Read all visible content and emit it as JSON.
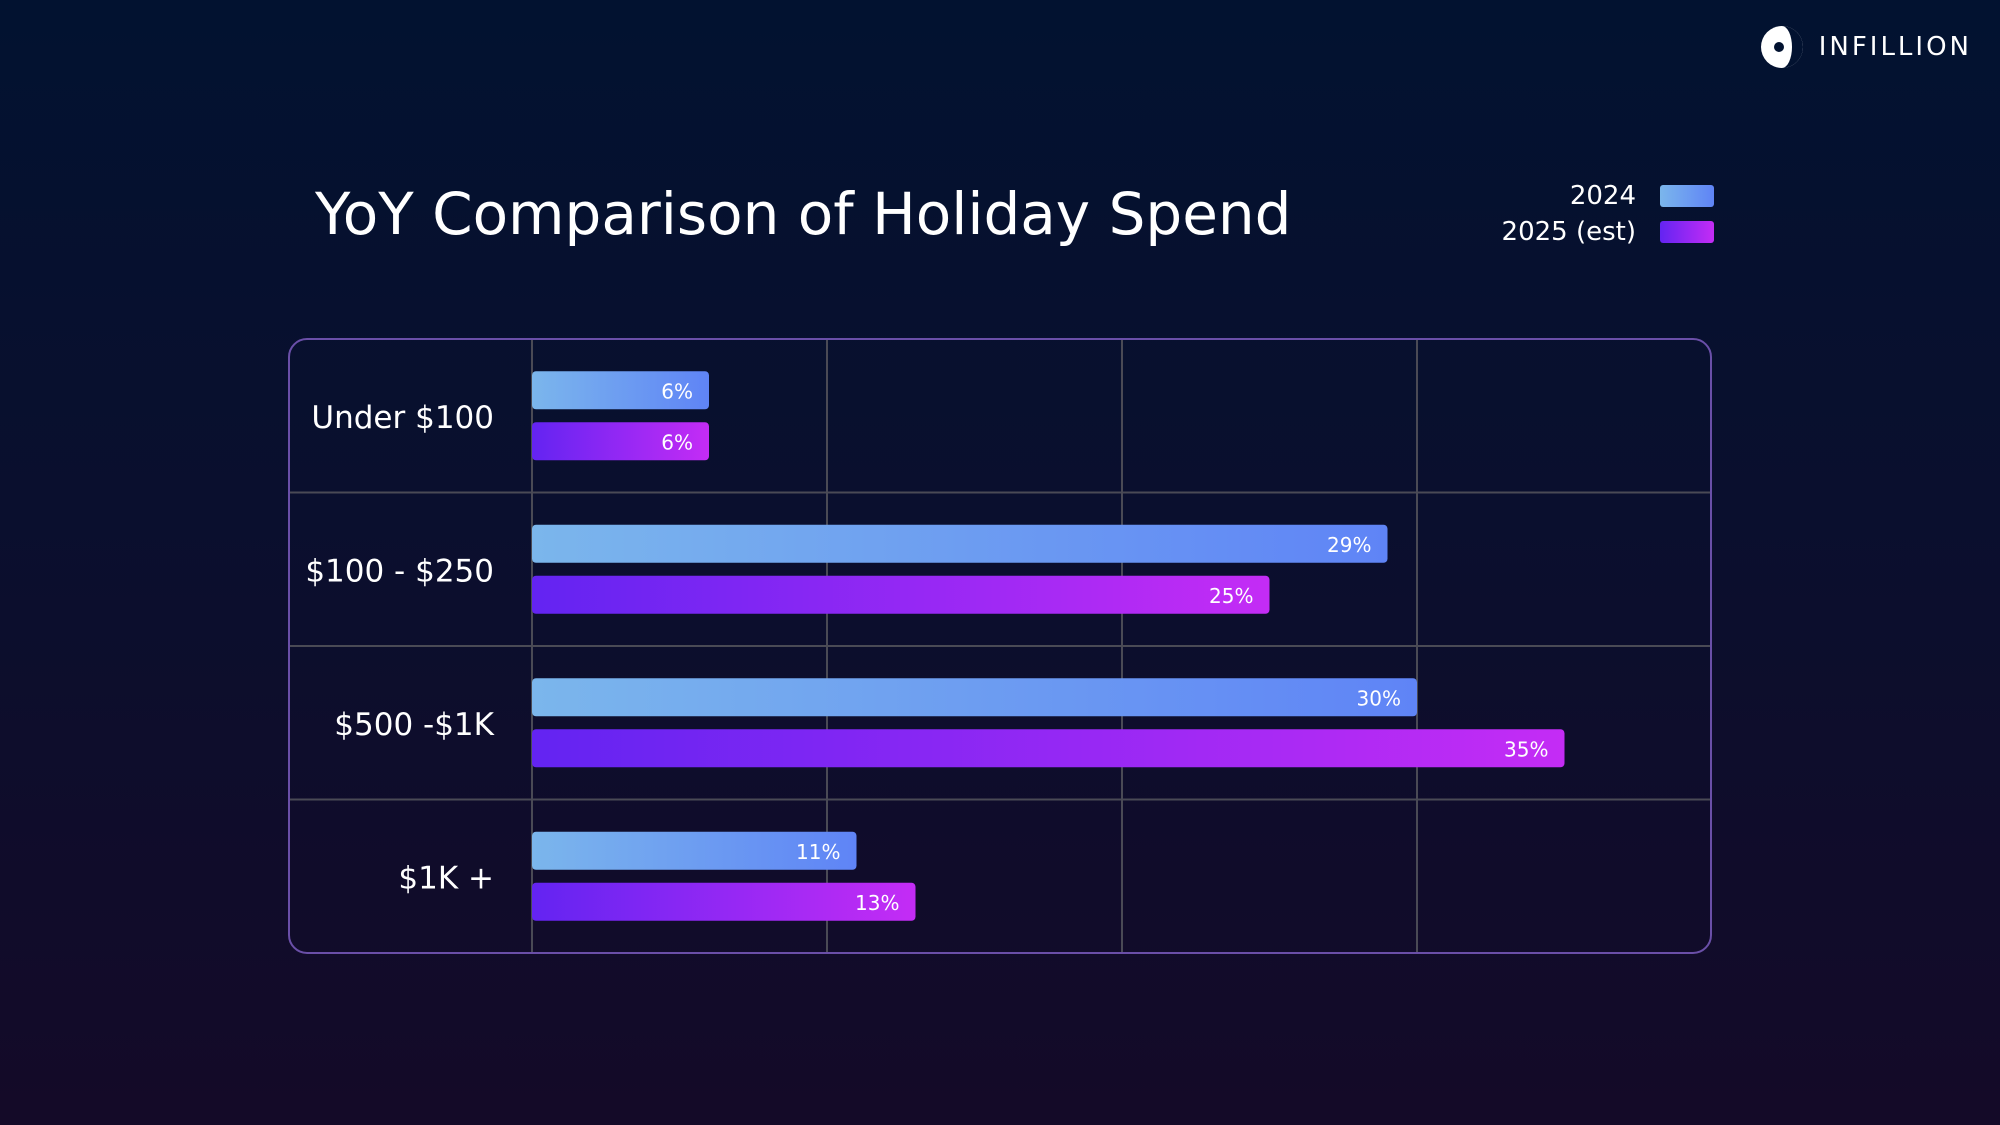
{
  "brand": {
    "name": "INFILLION",
    "logo_icon": "infillion-logo-icon"
  },
  "colors": {
    "series_2024_start": "#7bb6ec",
    "series_2024_end": "#5f84f6",
    "series_2025_start": "#6324f2",
    "series_2025_end": "#c42cf5",
    "frame": "#6a4fa8",
    "grid": "#4a4a55"
  },
  "chart_data": {
    "type": "bar",
    "orientation": "horizontal",
    "title": "YoY Comparison of Holiday Spend",
    "categories": [
      "Under $100",
      "$100 - $250",
      "$500 -$1K",
      "$1K +"
    ],
    "series": [
      {
        "name": "2024",
        "values": [
          6,
          29,
          30,
          11
        ],
        "labels": [
          "6%",
          "29%",
          "30%",
          "11%"
        ]
      },
      {
        "name": "2025 (est)",
        "values": [
          6,
          25,
          35,
          13
        ],
        "labels": [
          "6%",
          "25%",
          "35%",
          "13%"
        ]
      }
    ],
    "xlim": [
      0,
      40
    ],
    "grid": true,
    "legend_position": "top-right"
  }
}
